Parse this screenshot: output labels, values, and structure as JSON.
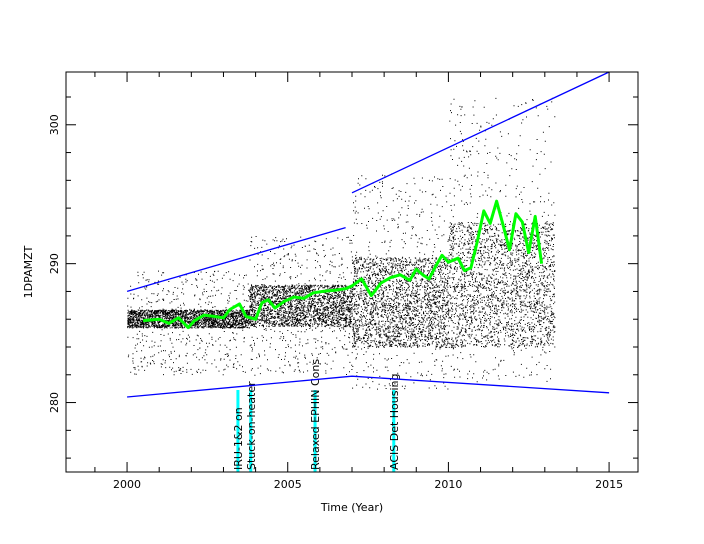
{
  "chart_data": {
    "type": "scatter",
    "xlabel": "Time (Year)",
    "ylabel": "1DPAMZT",
    "xlim": [
      1998.1,
      2015.9
    ],
    "ylim": [
      275.0,
      303.8
    ],
    "x_ticks": [
      2000,
      2005,
      2010,
      2015
    ],
    "y_ticks": [
      280,
      290,
      300
    ],
    "grid": false,
    "legend": "none",
    "colors": {
      "points": "#000000",
      "smooth": "#00ff00",
      "envelope": "#0000ff",
      "events": "#00ffff",
      "axes": "#000000"
    },
    "scatter_bands": [
      {
        "x": [
          2000.0,
          2003.8
        ],
        "core": [
          285.4,
          286.7
        ],
        "spread": [
          282.0,
          289.5
        ]
      },
      {
        "x": [
          2003.8,
          2007.0
        ],
        "core": [
          285.5,
          288.5
        ],
        "spread": [
          282.0,
          292.0
        ]
      },
      {
        "x": [
          2007.0,
          2010.0
        ],
        "core": [
          284.0,
          290.5
        ],
        "spread": [
          281.0,
          296.5
        ]
      },
      {
        "x": [
          2010.0,
          2013.3
        ],
        "core": [
          284.0,
          293.0
        ],
        "spread": [
          281.5,
          302.0
        ]
      }
    ],
    "series": [
      {
        "type": "line",
        "role": "smoothed-mean",
        "x": [
          2000.5,
          2001.0,
          2001.3,
          2001.6,
          2001.9,
          2002.1,
          2002.4,
          2002.7,
          2003.0,
          2003.2,
          2003.5,
          2003.7,
          2004.0,
          2004.2,
          2004.4,
          2004.6,
          2004.9,
          2005.2,
          2005.5,
          2005.8,
          2006.1,
          2006.5,
          2006.8,
          2007.0,
          2007.3,
          2007.6,
          2007.9,
          2008.2,
          2008.5,
          2008.8,
          2009.0,
          2009.2,
          2009.4,
          2009.6,
          2009.8,
          2010.0,
          2010.3,
          2010.5,
          2010.7,
          2010.9,
          2011.1,
          2011.3,
          2011.5,
          2011.7,
          2011.9,
          2012.1,
          2012.3,
          2012.5,
          2012.7,
          2012.9
        ],
        "y": [
          285.9,
          286.0,
          285.7,
          286.1,
          285.4,
          285.9,
          286.3,
          286.2,
          286.1,
          286.7,
          287.1,
          286.2,
          286.0,
          287.2,
          287.4,
          286.8,
          287.3,
          287.6,
          287.5,
          287.9,
          288.0,
          288.1,
          288.2,
          288.4,
          288.9,
          287.7,
          288.6,
          289.0,
          289.2,
          288.8,
          289.6,
          289.2,
          288.9,
          289.8,
          290.6,
          290.1,
          290.4,
          289.5,
          289.7,
          291.6,
          293.8,
          292.9,
          294.5,
          292.8,
          291.0,
          293.6,
          293.0,
          290.8,
          293.4,
          290.0
        ]
      },
      {
        "type": "line",
        "role": "upper-envelope",
        "x": [
          2000.0,
          2006.8
        ],
        "y": [
          288.0,
          292.6
        ]
      },
      {
        "type": "line",
        "role": "upper-envelope",
        "x": [
          2007.0,
          2015.0
        ],
        "y": [
          295.1,
          303.8
        ]
      },
      {
        "type": "line",
        "role": "lower-envelope",
        "x": [
          2000.0,
          2007.0,
          2015.0
        ],
        "y": [
          280.4,
          281.9,
          280.7
        ]
      }
    ],
    "annotations": [
      {
        "label": "IRU-1&2 on",
        "x": 2003.45
      },
      {
        "label": "Stuck-on-heater",
        "x": 2003.85
      },
      {
        "label": "Relaxed EPHIN Cons",
        "x": 2005.85
      },
      {
        "label": "ACIS Det Housing",
        "x": 2008.3
      }
    ]
  }
}
